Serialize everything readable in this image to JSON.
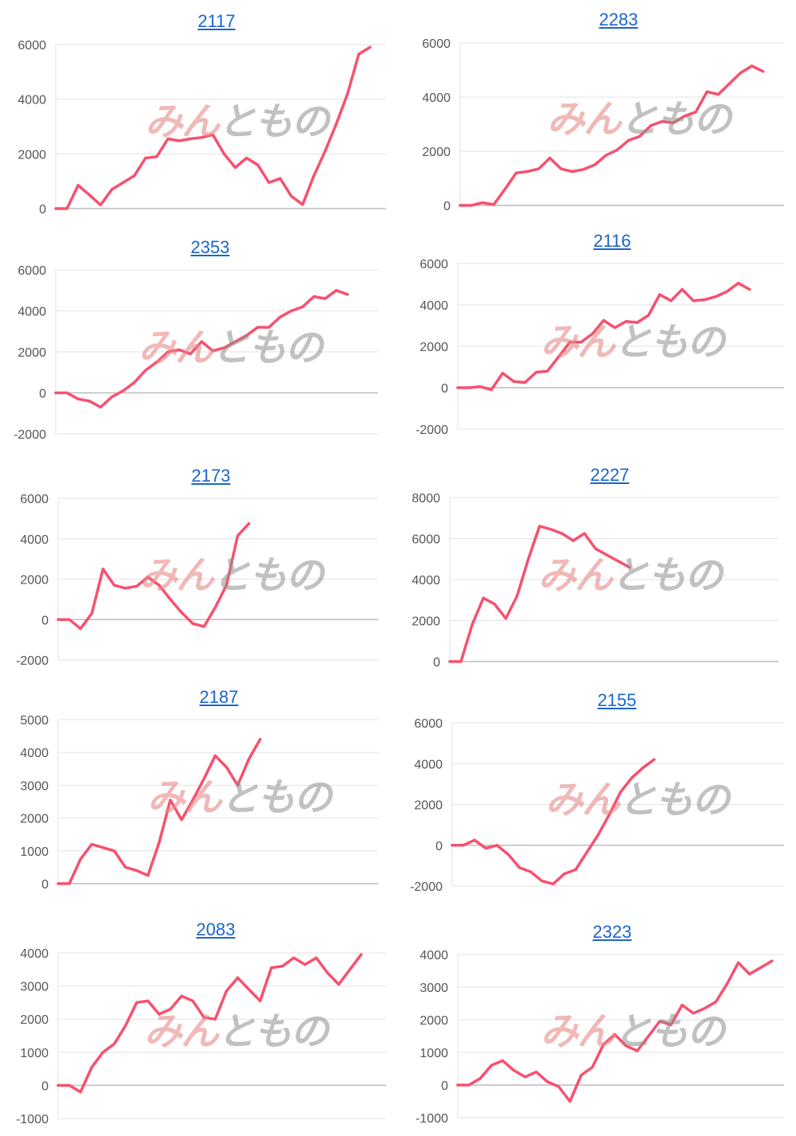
{
  "colors": {
    "line": "#f8506e",
    "grid": "#e2e2e2",
    "axis": "#bcbcbc",
    "title": "#1a66cc"
  },
  "chart_data": [
    {
      "type": "line",
      "title": "2117",
      "ylim": [
        0,
        6000
      ],
      "yticks": [
        0,
        2000,
        4000,
        6000
      ],
      "values": [
        0,
        0,
        850,
        500,
        130,
        700,
        950,
        1200,
        1850,
        1900,
        2550,
        2480,
        2550,
        2600,
        2700,
        2000,
        1500,
        1850,
        1600,
        950,
        1100,
        450,
        150,
        1200,
        2100,
        3100,
        4200,
        5650,
        5900
      ]
    },
    {
      "type": "line",
      "title": "2283",
      "ylim": [
        0,
        6000
      ],
      "yticks": [
        0,
        2000,
        4000,
        6000
      ],
      "values": [
        0,
        0,
        100,
        30,
        600,
        1200,
        1250,
        1350,
        1750,
        1350,
        1250,
        1330,
        1500,
        1850,
        2050,
        2400,
        2550,
        2950,
        3100,
        3050,
        3300,
        3450,
        4200,
        4100,
        4500,
        4900,
        5150,
        4950
      ]
    },
    {
      "type": "line",
      "title": "2353",
      "ylim": [
        -2000,
        6000
      ],
      "yticks": [
        -2000,
        0,
        2000,
        4000,
        6000
      ],
      "values": [
        0,
        0,
        -300,
        -400,
        -700,
        -200,
        100,
        500,
        1100,
        1500,
        2000,
        2100,
        1900,
        2500,
        2050,
        2200,
        2500,
        2800,
        3200,
        3200,
        3700,
        4000,
        4200,
        4700,
        4600,
        5000,
        4800
      ]
    },
    {
      "type": "line",
      "title": "2116",
      "ylim": [
        -2000,
        6000
      ],
      "yticks": [
        -2000,
        0,
        2000,
        4000,
        6000
      ],
      "values": [
        0,
        0,
        50,
        -100,
        700,
        300,
        250,
        750,
        800,
        1500,
        2200,
        2200,
        2600,
        3250,
        2900,
        3200,
        3150,
        3500,
        4500,
        4200,
        4750,
        4200,
        4250,
        4400,
        4650,
        5050,
        4750
      ]
    },
    {
      "type": "line",
      "title": "2173",
      "ylim": [
        -2000,
        6000
      ],
      "yticks": [
        -2000,
        0,
        2000,
        4000,
        6000
      ],
      "values": [
        0,
        0,
        -450,
        300,
        2500,
        1700,
        1550,
        1650,
        2100,
        1700,
        1000,
        350,
        -200,
        -350,
        600,
        1700,
        4150,
        4750
      ]
    },
    {
      "type": "line",
      "title": "2227",
      "ylim": [
        0,
        8000
      ],
      "yticks": [
        0,
        2000,
        4000,
        6000,
        8000
      ],
      "values": [
        0,
        0,
        1800,
        3100,
        2800,
        2100,
        3200,
        5000,
        6600,
        6450,
        6250,
        5900,
        6250,
        5500,
        5200,
        4900,
        4600
      ]
    },
    {
      "type": "line",
      "title": "2187",
      "ylim": [
        0,
        5000
      ],
      "yticks": [
        0,
        1000,
        2000,
        3000,
        4000,
        5000
      ],
      "values": [
        0,
        0,
        750,
        1200,
        1100,
        1000,
        500,
        400,
        250,
        1250,
        2550,
        1950,
        2550,
        3200,
        3900,
        3550,
        3000,
        3800,
        4400
      ]
    },
    {
      "type": "line",
      "title": "2155",
      "ylim": [
        -2000,
        6000
      ],
      "yticks": [
        -2000,
        0,
        2000,
        4000,
        6000
      ],
      "values": [
        0,
        0,
        250,
        -150,
        0,
        -450,
        -1100,
        -1300,
        -1750,
        -1900,
        -1400,
        -1200,
        -350,
        500,
        1500,
        2600,
        3300,
        3800,
        4200
      ]
    },
    {
      "type": "line",
      "title": "2083",
      "ylim": [
        -1000,
        4000
      ],
      "yticks": [
        -1000,
        0,
        1000,
        2000,
        3000,
        4000
      ],
      "values": [
        0,
        0,
        -200,
        550,
        1000,
        1250,
        1800,
        2500,
        2550,
        2150,
        2300,
        2700,
        2550,
        2050,
        2000,
        2850,
        3250,
        2900,
        2550,
        3550,
        3600,
        3850,
        3650,
        3850,
        3400,
        3050,
        3500,
        3950
      ]
    },
    {
      "type": "line",
      "title": "2323",
      "ylim": [
        -1000,
        4000
      ],
      "yticks": [
        -1000,
        0,
        1000,
        2000,
        3000,
        4000
      ],
      "values": [
        0,
        0,
        200,
        600,
        750,
        450,
        250,
        400,
        100,
        -50,
        -500,
        300,
        550,
        1250,
        1550,
        1200,
        1050,
        1500,
        1950,
        1850,
        2450,
        2200,
        2350,
        2550,
        3100,
        3750,
        3400,
        3600,
        3800
      ]
    }
  ],
  "watermark": {
    "part1": "みん",
    "part2": "ともの"
  }
}
